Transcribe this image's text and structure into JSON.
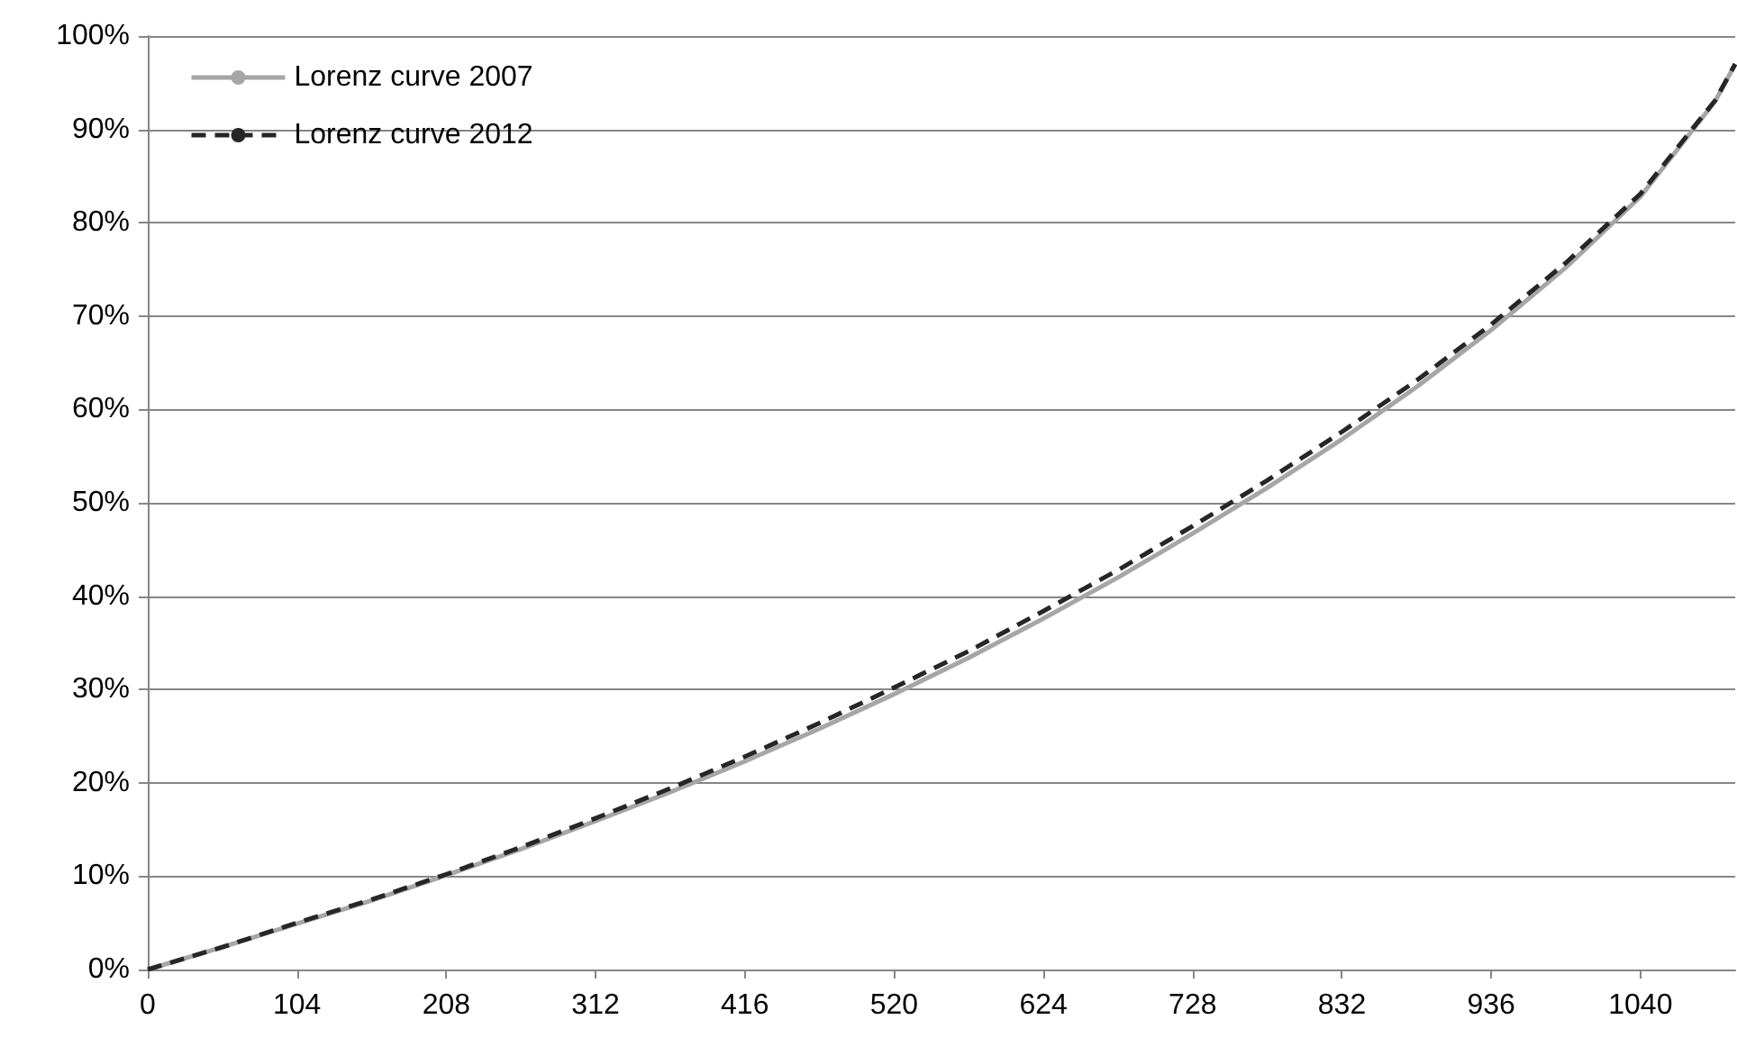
{
  "chart_data": {
    "type": "line",
    "x": [
      0,
      52,
      104,
      156,
      208,
      260,
      312,
      364,
      416,
      468,
      520,
      572,
      624,
      676,
      728,
      780,
      832,
      884,
      936,
      988,
      1040,
      1092,
      1106
    ],
    "series": [
      {
        "name": "Lorenz curve 2007",
        "color": "#a6a6a6",
        "line_style": "solid",
        "values": [
          0,
          2.4,
          4.9,
          7.4,
          10.1,
          12.9,
          15.9,
          19.0,
          22.3,
          25.8,
          29.5,
          33.4,
          37.6,
          42.0,
          46.7,
          51.6,
          56.8,
          62.4,
          68.5,
          75.2,
          82.8,
          93.0,
          97.0
        ]
      },
      {
        "name": "Lorenz curve 2012",
        "color": "#262626",
        "line_style": "dashed",
        "values": [
          0,
          2.4,
          5.0,
          7.5,
          10.2,
          13.1,
          16.2,
          19.4,
          22.8,
          26.4,
          30.2,
          34.1,
          38.4,
          42.8,
          47.5,
          52.4,
          57.6,
          63.1,
          69.1,
          75.7,
          83.1,
          93.1,
          97.0
        ]
      }
    ],
    "xlim": [
      0,
      1106
    ],
    "xticks": [
      0,
      104,
      208,
      312,
      416,
      520,
      624,
      728,
      832,
      936,
      1040
    ],
    "ylim": [
      0,
      100
    ],
    "yticks": [
      {
        "value": 0,
        "label": "0%"
      },
      {
        "value": 10,
        "label": "10%"
      },
      {
        "value": 20,
        "label": "20%"
      },
      {
        "value": 30,
        "label": "30%"
      },
      {
        "value": 40,
        "label": "40%"
      },
      {
        "value": 50,
        "label": "50%"
      },
      {
        "value": 60,
        "label": "60%"
      },
      {
        "value": 70,
        "label": "70%"
      },
      {
        "value": 80,
        "label": "80%"
      },
      {
        "value": 90,
        "label": "90%"
      },
      {
        "value": 100,
        "label": "100%"
      }
    ],
    "grid": "y",
    "legend": "top left",
    "marker": "none"
  }
}
